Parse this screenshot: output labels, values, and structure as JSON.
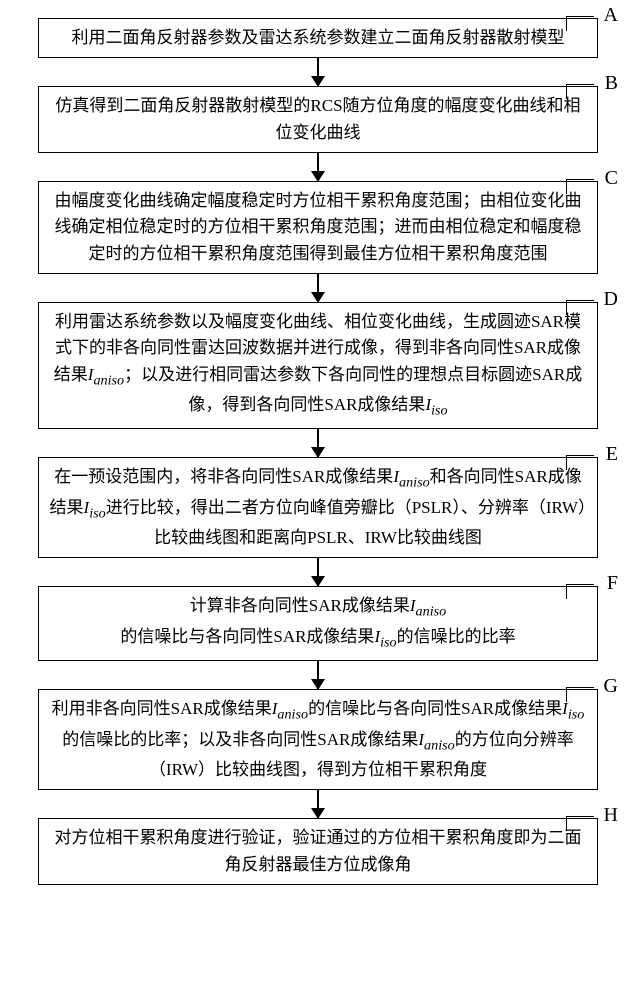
{
  "flowchart": {
    "type": "flowchart",
    "direction": "top-down",
    "box_border_color": "#000000",
    "box_border_width": 1.5,
    "box_bg_color": "#ffffff",
    "arrow_color": "#000000",
    "font_family": "SimSun",
    "font_size_pt": 13,
    "label_font_family": "Times New Roman",
    "label_font_size_pt": 15,
    "nodes": [
      {
        "id": "A",
        "label": "A",
        "text": "利用二面角反射器参数及雷达系统参数建立二面角反射器散射模型"
      },
      {
        "id": "B",
        "label": "B",
        "text": "仿真得到二面角反射器散射模型的RCS随方位角度的幅度变化曲线和相位变化曲线"
      },
      {
        "id": "C",
        "label": "C",
        "text": "由幅度变化曲线确定幅度稳定时方位相干累积角度范围；由相位变化曲线确定相位稳定时的方位相干累积角度范围；进而由相位稳定和幅度稳定时的方位相干累积角度范围得到最佳方位相干累积角度范围"
      },
      {
        "id": "D",
        "label": "D",
        "text": "利用雷达系统参数以及幅度变化曲线、相位变化曲线，生成圆迹SAR模式下的非各向同性雷达回波数据并进行成像，得到非各向同性SAR成像结果Iₐₙᵢₛₒ；以及进行相同雷达参数下各向同性的理想点目标圆迹SAR成像，得到各向同性SAR成像结果Iᵢₛₒ"
      },
      {
        "id": "E",
        "label": "E",
        "text": "在一预设范围内，将非各向同性SAR成像结果Iₐₙᵢₛₒ和各向同性SAR成像结果Iᵢₛₒ进行比较，得出二者方位向峰值旁瓣比（PSLR）、分辨率（IRW）比较曲线图和距离向PSLR、IRW比较曲线图"
      },
      {
        "id": "F",
        "label": "F",
        "text": "计算非各向同性SAR成像结果Iₐₙᵢₛₒ\n的信噪比与各向同性SAR成像结果Iᵢₛₒ的信噪比的比率"
      },
      {
        "id": "G",
        "label": "G",
        "text": "利用非各向同性SAR成像结果Iₐₙᵢₛₒ的信噪比与各向同性SAR成像结果Iᵢₛₒ的信噪比的比率；以及非各向同性SAR成像结果Iₐₙᵢₛₒ的方位向分辨率（IRW）比较曲线图，得到方位相干累积角度"
      },
      {
        "id": "H",
        "label": "H",
        "text": "对方位相干累积角度进行验证，验证通过的方位相干累积角度即为二面角反射器最佳方位成像角"
      }
    ],
    "edges": [
      {
        "from": "A",
        "to": "B"
      },
      {
        "from": "B",
        "to": "C"
      },
      {
        "from": "C",
        "to": "D"
      },
      {
        "from": "D",
        "to": "E"
      },
      {
        "from": "E",
        "to": "F"
      },
      {
        "from": "F",
        "to": "G"
      },
      {
        "from": "G",
        "to": "H"
      }
    ]
  }
}
